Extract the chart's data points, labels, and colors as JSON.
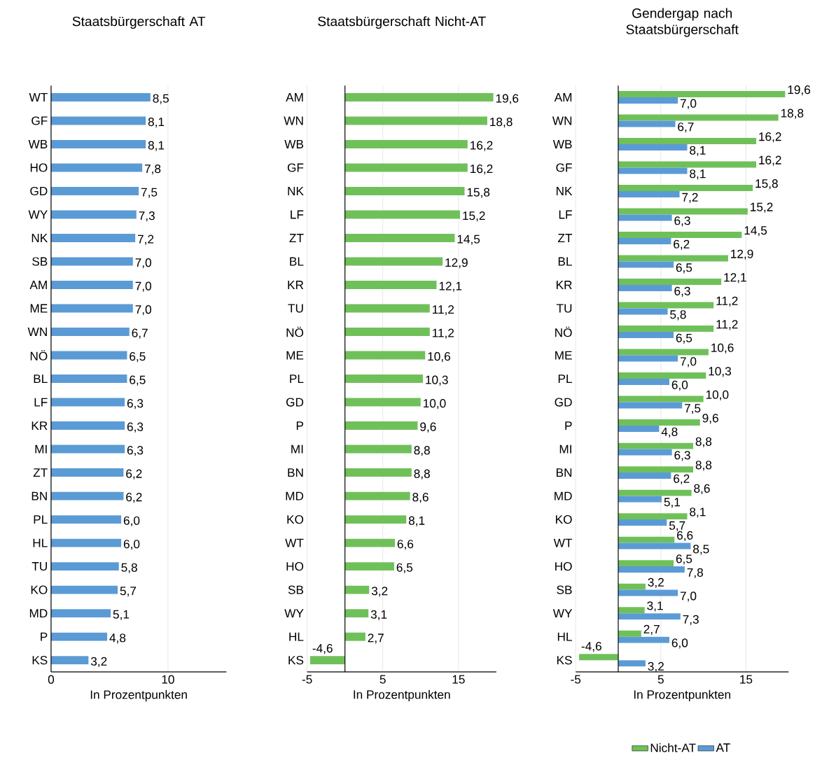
{
  "chart_data": [
    {
      "type": "bar",
      "orientation": "horizontal",
      "title": "Staatsbürgerschaft AT",
      "xlabel": "In Prozentpunkten",
      "categories": [
        "WT",
        "GF",
        "WB",
        "HO",
        "GD",
        "WY",
        "NK",
        "SB",
        "AM",
        "ME",
        "WN",
        "NÖ",
        "BL",
        "LF",
        "KR",
        "MI",
        "ZT",
        "BN",
        "PL",
        "HL",
        "TU",
        "KO",
        "MD",
        "P",
        "KS"
      ],
      "series": [
        {
          "color": "#5b9bd5",
          "values": [
            8.5,
            8.1,
            8.1,
            7.8,
            7.5,
            7.3,
            7.2,
            7.0,
            7.0,
            7.0,
            6.7,
            6.5,
            6.5,
            6.3,
            6.3,
            6.3,
            6.2,
            6.2,
            6.0,
            6.0,
            5.8,
            5.7,
            5.1,
            4.8,
            3.2
          ],
          "value_labels": [
            "8,5",
            "8,1",
            "8,1",
            "7,8",
            "7,5",
            "7,3",
            "7,2",
            "7,0",
            "7,0",
            "7,0",
            "6,7",
            "6,5",
            "6,5",
            "6,3",
            "6,3",
            "6,3",
            "6,2",
            "6,2",
            "6,0",
            "6,0",
            "5,8",
            "5,7",
            "5,1",
            "4,8",
            "3,2"
          ]
        }
      ],
      "xlim": [
        0,
        15
      ],
      "xticks": [
        0,
        10
      ],
      "grid": "x"
    },
    {
      "type": "bar",
      "orientation": "horizontal",
      "title": "Staatsbürgerschaft Nicht-AT",
      "xlabel": "In Prozentpunkten",
      "categories": [
        "AM",
        "WN",
        "WB",
        "GF",
        "NK",
        "LF",
        "ZT",
        "BL",
        "KR",
        "TU",
        "NÖ",
        "ME",
        "PL",
        "GD",
        "P",
        "MI",
        "BN",
        "MD",
        "KO",
        "WT",
        "HO",
        "SB",
        "WY",
        "HL",
        "KS"
      ],
      "series": [
        {
          "color": "#70c05a",
          "values": [
            19.6,
            18.8,
            16.2,
            16.2,
            15.8,
            15.2,
            14.5,
            12.9,
            12.1,
            11.2,
            11.2,
            10.6,
            10.3,
            10.0,
            9.6,
            8.8,
            8.8,
            8.6,
            8.1,
            6.6,
            6.5,
            3.2,
            3.1,
            2.7,
            -4.6
          ],
          "value_labels": [
            "19,6",
            "18,8",
            "16,2",
            "16,2",
            "15,8",
            "15,2",
            "14,5",
            "12,9",
            "12,1",
            "11,2",
            "11,2",
            "10,6",
            "10,3",
            "10,0",
            "9,6",
            "8,8",
            "8,8",
            "8,6",
            "8,1",
            "6,6",
            "6,5",
            "3,2",
            "3,1",
            "2,7",
            "-4,6"
          ]
        }
      ],
      "xlim": [
        -5,
        20
      ],
      "xticks": [
        -5,
        5,
        15
      ],
      "grid": "x"
    },
    {
      "type": "bar",
      "orientation": "horizontal",
      "title": "Gendergap nach Staatsbürgerschaft",
      "xlabel": "In Prozentpunkten",
      "categories": [
        "AM",
        "WN",
        "WB",
        "GF",
        "NK",
        "LF",
        "ZT",
        "BL",
        "KR",
        "TU",
        "NÖ",
        "ME",
        "PL",
        "GD",
        "P",
        "MI",
        "BN",
        "MD",
        "KO",
        "WT",
        "HO",
        "SB",
        "WY",
        "HL",
        "KS"
      ],
      "series": [
        {
          "name": "Nicht-AT",
          "color": "#70c05a",
          "values": [
            19.6,
            18.8,
            16.2,
            16.2,
            15.8,
            15.2,
            14.5,
            12.9,
            12.1,
            11.2,
            11.2,
            10.6,
            10.3,
            10.0,
            9.6,
            8.8,
            8.8,
            8.6,
            8.1,
            6.6,
            6.5,
            3.2,
            3.1,
            2.7,
            -4.6
          ],
          "value_labels": [
            "19,6",
            "18,8",
            "16,2",
            "16,2",
            "15,8",
            "15,2",
            "14,5",
            "12,9",
            "12,1",
            "11,2",
            "11,2",
            "10,6",
            "10,3",
            "10,0",
            "9,6",
            "8,8",
            "8,8",
            "8,6",
            "8,1",
            "6,6",
            "6,5",
            "3,2",
            "3,1",
            "2,7",
            "-4,6"
          ]
        },
        {
          "name": "AT",
          "color": "#5b9bd5",
          "values": [
            7.0,
            6.7,
            8.1,
            8.1,
            7.2,
            6.3,
            6.2,
            6.5,
            6.3,
            5.8,
            6.5,
            7.0,
            6.0,
            7.5,
            4.8,
            6.3,
            6.2,
            5.1,
            5.7,
            8.5,
            7.8,
            7.0,
            7.3,
            6.0,
            3.2
          ],
          "value_labels": [
            "7,0",
            "6,7",
            "8,1",
            "8,1",
            "7,2",
            "6,3",
            "6,2",
            "6,5",
            "6,3",
            "5,8",
            "6,5",
            "7,0",
            "6,0",
            "7,5",
            "4,8",
            "6,3",
            "6,2",
            "5,1",
            "5,7",
            "8,5",
            "7,8",
            "7,0",
            "7,3",
            "6,0",
            "3,2"
          ]
        }
      ],
      "xlim": [
        -5,
        20
      ],
      "xticks": [
        -5,
        5,
        15
      ],
      "grid": "x",
      "legend": "bottom"
    }
  ]
}
